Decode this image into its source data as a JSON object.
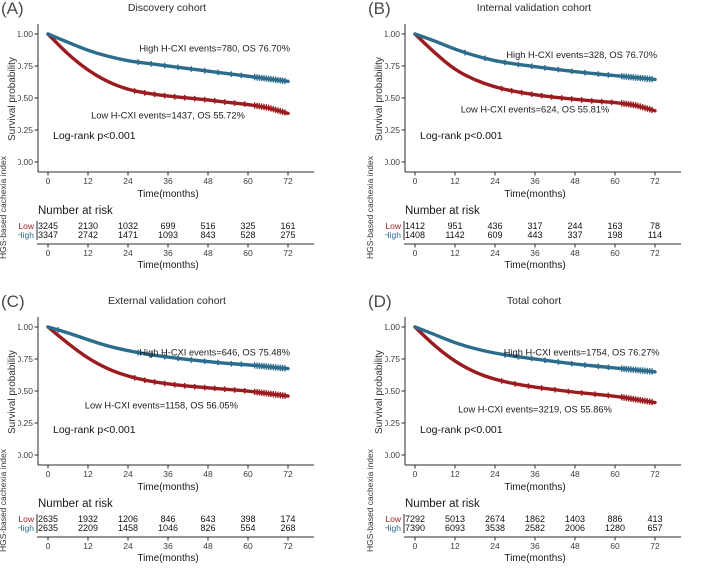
{
  "figure": {
    "background": "#ffffff",
    "colors": {
      "high": "#2C6C8C",
      "low": "#9B1B1E",
      "axis": "#2b2b2b",
      "text": "#1a1a1a",
      "tick_text": "#3d3d3d"
    },
    "shared_axes": {
      "ylabel": "Survival probability",
      "side_label": "HGS-based cachexia index",
      "xlabel": "Time(months)",
      "y_tick_labels": [
        "1.00",
        "0.75",
        "0.50",
        "0.25",
        "0.00"
      ],
      "y_tick_values": [
        1.0,
        0.75,
        0.5,
        0.25,
        0.0
      ],
      "x_tick_labels": [
        "0",
        "12",
        "24",
        "36",
        "48",
        "60",
        "72"
      ],
      "x_tick_values": [
        0,
        12,
        24,
        36,
        48,
        60,
        72
      ],
      "risk_header": "Number at risk",
      "censor_cluster": [
        62,
        71.6
      ]
    }
  },
  "chart_data": [
    {
      "panel_label": "(A)",
      "title": "Discovery cohort",
      "type": "line",
      "xlabel": "Time(months)",
      "ylabel": "Survival probability",
      "xlim": [
        0,
        72
      ],
      "ylim": [
        0.0,
        1.0
      ],
      "x_months": [
        0,
        6,
        12,
        18,
        24,
        30,
        36,
        42,
        48,
        54,
        60,
        66,
        72
      ],
      "series": [
        {
          "name": "High H-CXI",
          "color_key": "high",
          "values": [
            1.0,
            0.935,
            0.87,
            0.825,
            0.79,
            0.77,
            0.75,
            0.73,
            0.71,
            0.69,
            0.67,
            0.65,
            0.63
          ],
          "label": "High H-CXI events=780, OS 76.70%",
          "label_anchor": {
            "month": 50,
            "value": 0.885
          },
          "censor_months": [
            27,
            31,
            35,
            39,
            43,
            47,
            51,
            55,
            58
          ]
        },
        {
          "name": "Low H-CXI",
          "color_key": "low",
          "values": [
            1.0,
            0.84,
            0.715,
            0.625,
            0.565,
            0.535,
            0.515,
            0.5,
            0.485,
            0.465,
            0.45,
            0.425,
            0.38
          ],
          "label": "Low H-CXI events=1437, OS 55.72%",
          "label_anchor": {
            "month": 36,
            "value": 0.365
          },
          "censor_months": [
            26,
            29,
            32,
            35,
            38,
            41,
            44,
            47,
            50,
            53,
            56,
            59
          ]
        }
      ],
      "logrank": {
        "text": "Log-rank p<0.001",
        "anchor": {
          "month": 1.5,
          "value": 0.205
        }
      },
      "number_at_risk": [
        {
          "label": "Low",
          "color_key": "low",
          "values": [
            3245,
            2130,
            1032,
            699,
            516,
            325,
            161
          ]
        },
        {
          "label": "High",
          "color_key": "high",
          "values": [
            3347,
            2742,
            1471,
            1093,
            843,
            528,
            275
          ]
        }
      ]
    },
    {
      "panel_label": "(B)",
      "title": "Internal validation cohort",
      "type": "line",
      "xlabel": "Time(months)",
      "ylabel": "Survival probability",
      "xlim": [
        0,
        72
      ],
      "ylim": [
        0.0,
        1.0
      ],
      "x_months": [
        0,
        6,
        12,
        18,
        24,
        30,
        36,
        42,
        48,
        54,
        60,
        66,
        72
      ],
      "series": [
        {
          "name": "High H-CXI",
          "color_key": "high",
          "values": [
            1.0,
            0.945,
            0.88,
            0.83,
            0.79,
            0.765,
            0.745,
            0.725,
            0.705,
            0.69,
            0.675,
            0.66,
            0.645
          ],
          "label": "High H-CXI events=328, OS 76.70%",
          "label_anchor": {
            "month": 50,
            "value": 0.835
          },
          "censor_months": [
            15,
            21,
            27,
            31,
            35,
            39,
            43,
            47,
            51,
            55,
            58
          ]
        },
        {
          "name": "Low H-CXI",
          "color_key": "low",
          "values": [
            1.0,
            0.85,
            0.72,
            0.64,
            0.585,
            0.55,
            0.525,
            0.505,
            0.49,
            0.475,
            0.465,
            0.445,
            0.4
          ],
          "label": "Low H-CXI events=624, OS 55.81%",
          "label_anchor": {
            "month": 36,
            "value": 0.41
          },
          "censor_months": [
            26,
            29,
            32,
            35,
            38,
            41,
            44,
            47,
            50,
            53,
            56,
            59
          ]
        }
      ],
      "logrank": {
        "text": "Log-rank p<0.001",
        "anchor": {
          "month": 1.5,
          "value": 0.205
        }
      },
      "number_at_risk": [
        {
          "label": "Low",
          "color_key": "low",
          "values": [
            1412,
            951,
            436,
            317,
            244,
            163,
            78
          ]
        },
        {
          "label": "High",
          "color_key": "high",
          "values": [
            1408,
            1142,
            609,
            443,
            337,
            198,
            114
          ]
        }
      ]
    },
    {
      "panel_label": "(C)",
      "title": "External validation cohort",
      "type": "line",
      "xlabel": "Time(months)",
      "ylabel": "Survival probability",
      "xlim": [
        0,
        72
      ],
      "ylim": [
        0.0,
        1.0
      ],
      "x_months": [
        0,
        6,
        12,
        18,
        24,
        30,
        36,
        42,
        48,
        54,
        60,
        66,
        72
      ],
      "series": [
        {
          "name": "High H-CXI",
          "color_key": "high",
          "values": [
            1.0,
            0.955,
            0.9,
            0.85,
            0.815,
            0.785,
            0.765,
            0.745,
            0.73,
            0.715,
            0.705,
            0.69,
            0.675
          ],
          "label": "High H-CXI events=646, OS 75.48%",
          "label_anchor": {
            "month": 50,
            "value": 0.8
          },
          "censor_months": [
            3,
            27,
            31,
            35,
            39,
            43,
            47,
            51,
            55,
            58
          ]
        },
        {
          "name": "Low H-CXI",
          "color_key": "low",
          "values": [
            1.0,
            0.87,
            0.755,
            0.67,
            0.615,
            0.578,
            0.555,
            0.538,
            0.525,
            0.512,
            0.5,
            0.48,
            0.46
          ],
          "label": "Low H-CXI events=1158, OS 56.05%",
          "label_anchor": {
            "month": 34,
            "value": 0.385
          },
          "censor_months": [
            26,
            29,
            32,
            35,
            38,
            41,
            44,
            47,
            50,
            53,
            56,
            59
          ]
        }
      ],
      "logrank": {
        "text": "Log-rank p<0.001",
        "anchor": {
          "month": 1.5,
          "value": 0.195
        }
      },
      "number_at_risk": [
        {
          "label": "Low",
          "color_key": "low",
          "values": [
            2635,
            1932,
            1206,
            846,
            643,
            398,
            174
          ]
        },
        {
          "label": "High",
          "color_key": "high",
          "values": [
            2635,
            2209,
            1458,
            1046,
            826,
            554,
            268
          ]
        }
      ]
    },
    {
      "panel_label": "(D)",
      "title": "Total cohort",
      "type": "line",
      "xlabel": "Time(months)",
      "ylabel": "Survival probability",
      "xlim": [
        0,
        72
      ],
      "ylim": [
        0.0,
        1.0
      ],
      "x_months": [
        0,
        6,
        12,
        18,
        24,
        30,
        36,
        42,
        48,
        54,
        60,
        66,
        72
      ],
      "series": [
        {
          "name": "High H-CXI",
          "color_key": "high",
          "values": [
            1.0,
            0.94,
            0.875,
            0.83,
            0.795,
            0.77,
            0.75,
            0.73,
            0.71,
            0.695,
            0.68,
            0.665,
            0.65
          ],
          "label": "High H-CXI events=1754, OS 76.27%",
          "label_anchor": {
            "month": 50,
            "value": 0.8
          },
          "censor_months": [
            27,
            31,
            35,
            39,
            43,
            47,
            51,
            55,
            58
          ]
        },
        {
          "name": "Low H-CXI",
          "color_key": "low",
          "values": [
            1.0,
            0.85,
            0.73,
            0.645,
            0.59,
            0.555,
            0.53,
            0.51,
            0.49,
            0.475,
            0.46,
            0.435,
            0.41
          ],
          "label": "Low H-CXI events=3219, OS 55.86%",
          "label_anchor": {
            "month": 36,
            "value": 0.355
          },
          "censor_months": [
            26,
            30,
            34,
            38,
            42,
            46,
            50,
            54,
            58
          ]
        }
      ],
      "logrank": {
        "text": "Log-rank p<0.001",
        "anchor": {
          "month": 1.5,
          "value": 0.195
        }
      },
      "number_at_risk": [
        {
          "label": "Low",
          "color_key": "low",
          "values": [
            7292,
            5013,
            2674,
            1862,
            1403,
            886,
            413
          ]
        },
        {
          "label": "High",
          "color_key": "high",
          "values": [
            7390,
            6093,
            3538,
            2582,
            2006,
            1280,
            657
          ]
        }
      ]
    }
  ]
}
